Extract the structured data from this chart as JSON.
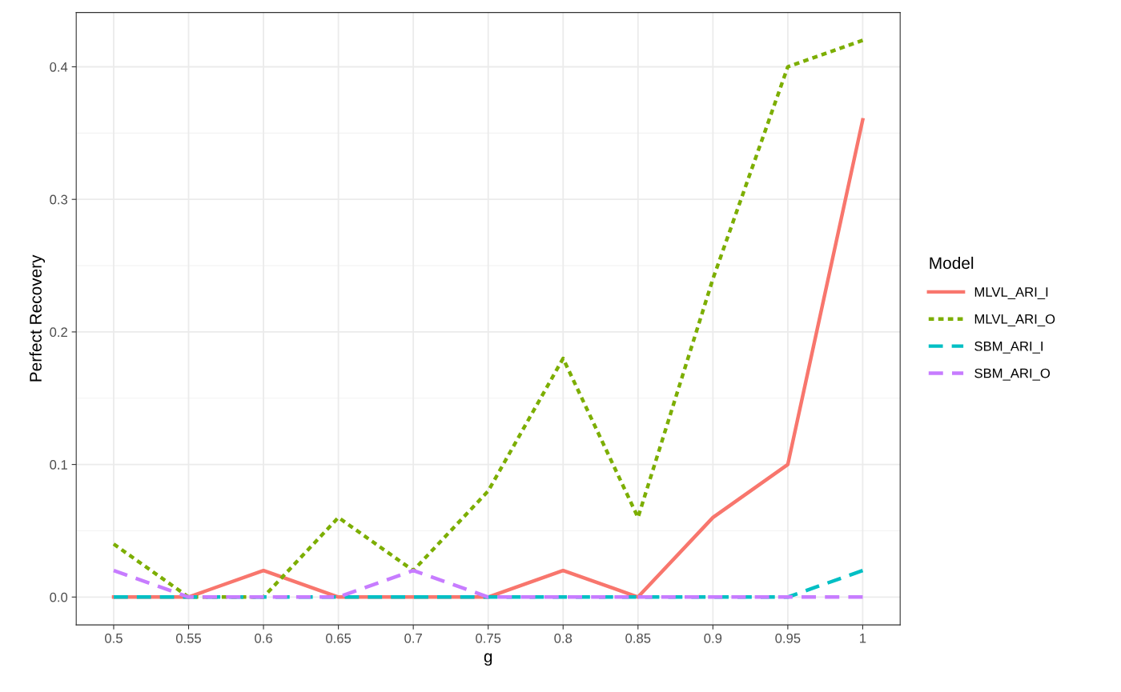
{
  "chart_data": {
    "type": "line",
    "xlabel": "g",
    "ylabel": "Perfect Recovery",
    "legend_title": "Model",
    "x": [
      0.5,
      0.55,
      0.6,
      0.65,
      0.7,
      0.75,
      0.8,
      0.85,
      0.9,
      0.95,
      1
    ],
    "series": [
      {
        "name": "MLVL_ARI_I",
        "color": "#f8766d",
        "line_style": "solid",
        "values": [
          0,
          0,
          0.02,
          0,
          0,
          0,
          0.02,
          0,
          0.06,
          0.1,
          0.36
        ]
      },
      {
        "name": "MLVL_ARI_O",
        "color": "#7cae00",
        "line_style": "dotted",
        "values": [
          0.04,
          0,
          0,
          0.06,
          0.02,
          0.08,
          0.18,
          0.06,
          0.24,
          0.4,
          0.42
        ]
      },
      {
        "name": "SBM_ARI_I",
        "color": "#00bfc4",
        "line_style": "dashed",
        "values": [
          0,
          0,
          0,
          0,
          0,
          0,
          0,
          0,
          0,
          0,
          0.02
        ]
      },
      {
        "name": "SBM_ARI_O",
        "color": "#c77cff",
        "line_style": "dashed",
        "values": [
          0.02,
          0,
          0,
          0,
          0.02,
          0,
          0,
          0,
          0,
          0,
          0
        ]
      }
    ],
    "xlim": [
      0.475,
      1.025
    ],
    "ylim": [
      -0.021,
      0.441
    ],
    "xticks": [
      {
        "value": 0.5,
        "label": "0.5"
      },
      0.55,
      {
        "value": 0.6,
        "label": "0.6"
      },
      0.65,
      {
        "value": 0.7,
        "label": "0.7"
      },
      0.75,
      {
        "value": 0.8,
        "label": "0.8"
      },
      0.85,
      {
        "value": 0.9,
        "label": "0.9"
      },
      0.95,
      {
        "value": 1,
        "label": "1"
      }
    ],
    "yticks": [
      {
        "value": 0,
        "label": "0.0"
      },
      0.1,
      0.2,
      0.3,
      0.4
    ],
    "grid": true,
    "legend": "right",
    "marker": "none"
  }
}
